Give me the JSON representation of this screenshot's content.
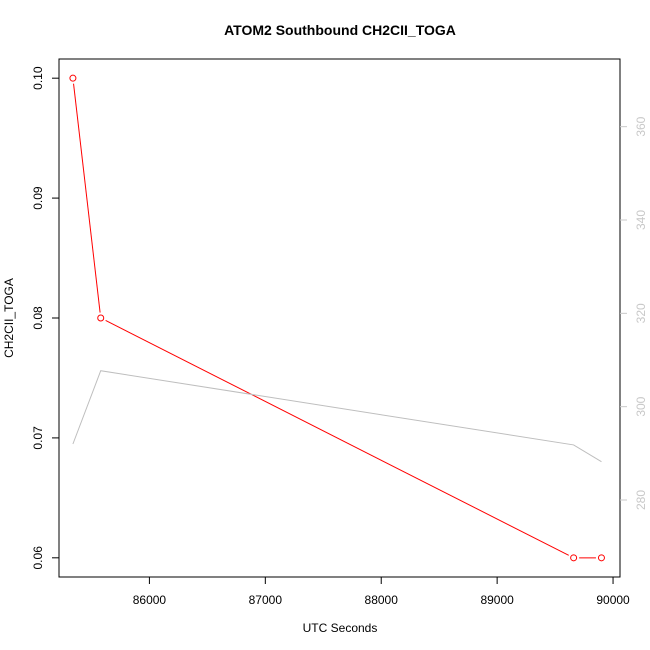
{
  "chart_data": {
    "type": "line",
    "title": "ATOM2 Southbound CH2CII_TOGA",
    "xlabel": "UTC Seconds",
    "ylabel": "CH2CII_TOGA",
    "xlim": [
      85220,
      90060
    ],
    "ylim": [
      0.0584,
      0.1016
    ],
    "y2lim": [
      263.5,
      374.5
    ],
    "x_ticks": [
      86000,
      87000,
      88000,
      89000,
      90000
    ],
    "y_ticks": [
      0.06,
      0.07,
      0.08,
      0.09,
      0.1
    ],
    "y_tick_labels": [
      "0.06",
      "0.07",
      "0.08",
      "0.09",
      "0.10"
    ],
    "y2_ticks": [
      280,
      300,
      320,
      340,
      360
    ],
    "grid": false,
    "series": [
      {
        "axis": "left",
        "color": "#ff0000",
        "markers": "open-circle",
        "x": [
          85340,
          85580,
          89660,
          89900
        ],
        "y": [
          0.1,
          0.08,
          0.06,
          0.06
        ]
      },
      {
        "axis": "right",
        "color": "#bebebe",
        "markers": "none",
        "x": [
          85340,
          85580,
          89660,
          89900
        ],
        "y": [
          292.0,
          307.7,
          291.8,
          288.2
        ]
      }
    ]
  }
}
